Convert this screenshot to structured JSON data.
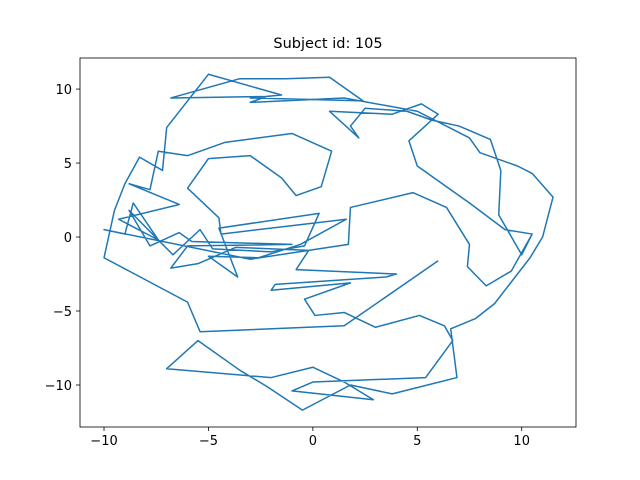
{
  "chart_data": {
    "type": "line",
    "title": "Subject id: 105",
    "x": [
      6,
      1.5,
      -5.4,
      -6,
      -10,
      -9.5,
      -9,
      -8.3,
      -7.2,
      -7,
      -5,
      -1.5,
      -3,
      2.4,
      0.8,
      -1.3,
      -3.5,
      -6.8,
      -2.2,
      -3,
      1.5,
      5,
      7.5,
      8,
      9.8,
      10.5,
      11.5,
      11,
      10.4,
      8.7,
      7.8,
      6.6,
      6.9,
      3.8,
      1.8,
      -0.5,
      -2.2,
      -3.5,
      -5.5,
      -7,
      -2,
      0,
      1.5,
      2.9,
      -1,
      0,
      5.4,
      6.7,
      6.3,
      5.1,
      3,
      1.5,
      0.1,
      -0.4,
      1.8,
      -2,
      -1.8,
      3.5,
      4,
      -0.8,
      -0.2,
      -3.7,
      -5.5,
      -6.8,
      -6,
      -1,
      -5.8,
      -6.4,
      -7.8,
      -8.8,
      -6.7,
      -5.4,
      -4.8,
      -2,
      -0.4,
      0.3,
      -4.5,
      -3.6,
      -5,
      -2.6,
      -0.6,
      1.6,
      -4.4,
      -4.5,
      -6,
      -5,
      -3,
      -1.5,
      -0.8,
      0.4,
      0.9,
      -1,
      -4.2,
      -6,
      -7.4,
      -7.8,
      -8.8,
      -6.4,
      -9.3,
      -7.4,
      -8.6,
      -9,
      -10,
      -3,
      1.7,
      1.8,
      4.8,
      6.4,
      7.5,
      7.4,
      8.3,
      9.5,
      10.5,
      10,
      8.9,
      9,
      8.5,
      7,
      5.7,
      4.5,
      2.5,
      1.8,
      2.2,
      0.8,
      3.8,
      5.2,
      6,
      4.6,
      5,
      7.5,
      9.2,
      10.5
    ],
    "y": [
      -1.6,
      -6,
      -6.4,
      -4.4,
      -1.4,
      1.8,
      3.6,
      5.4,
      4.5,
      7.4,
      11,
      9.6,
      9.4,
      9.2,
      10.8,
      10.7,
      10.7,
      9.4,
      9.5,
      9.1,
      9.4,
      8.5,
      6.7,
      5.7,
      4.8,
      4.3,
      2.7,
      0,
      -1.4,
      -4.5,
      -5.5,
      -6.2,
      -9.5,
      -10.6,
      -10,
      -11.7,
      -10.1,
      -9,
      -7,
      -8.9,
      -9.5,
      -8.8,
      -9.8,
      -11,
      -10.4,
      -9.8,
      -9.5,
      -7,
      -6,
      -5.3,
      -6.1,
      -5.1,
      -5.3,
      -4.2,
      -3.1,
      -3.6,
      -3.2,
      -2.7,
      -2.5,
      -2.2,
      -0.9,
      -0.7,
      -1.8,
      -2.1,
      -0.6,
      -0.5,
      -0.3,
      0.3,
      -0.6,
      1.8,
      -1.2,
      0.5,
      -0.8,
      -1,
      -0.6,
      1.6,
      0.6,
      -2.7,
      -1.3,
      -1.4,
      -0.5,
      1.2,
      0.2,
      1.3,
      3.3,
      5.3,
      5.5,
      4,
      2.8,
      3.4,
      5.8,
      7,
      6.4,
      5.5,
      5.8,
      3.2,
      3.6,
      2.2,
      1.2,
      -0.2,
      2.3,
      0.2,
      0.5,
      -1.5,
      -0.5,
      2,
      3,
      2,
      -0.5,
      -2,
      -3.3,
      -2.3,
      0.2,
      -1.2,
      1.5,
      4.5,
      6.6,
      7.5,
      7.9,
      8.5,
      8.7,
      7.5,
      6.7,
      8.5,
      8.3,
      9,
      8.3,
      6.5,
      4.8,
      2.3,
      0.5,
      0.2
    ],
    "color": "#1f77b4",
    "xlim": [
      -11.15,
      12.6
    ],
    "ylim": [
      -12.84,
      12.1
    ],
    "xticks": [
      {
        "value": -10,
        "label": "−10"
      },
      {
        "value": -5,
        "label": "−5"
      },
      0,
      5,
      10
    ],
    "yticks": [
      {
        "value": -10,
        "label": "−10"
      },
      {
        "value": -5,
        "label": "−5"
      },
      0,
      5,
      10
    ]
  }
}
